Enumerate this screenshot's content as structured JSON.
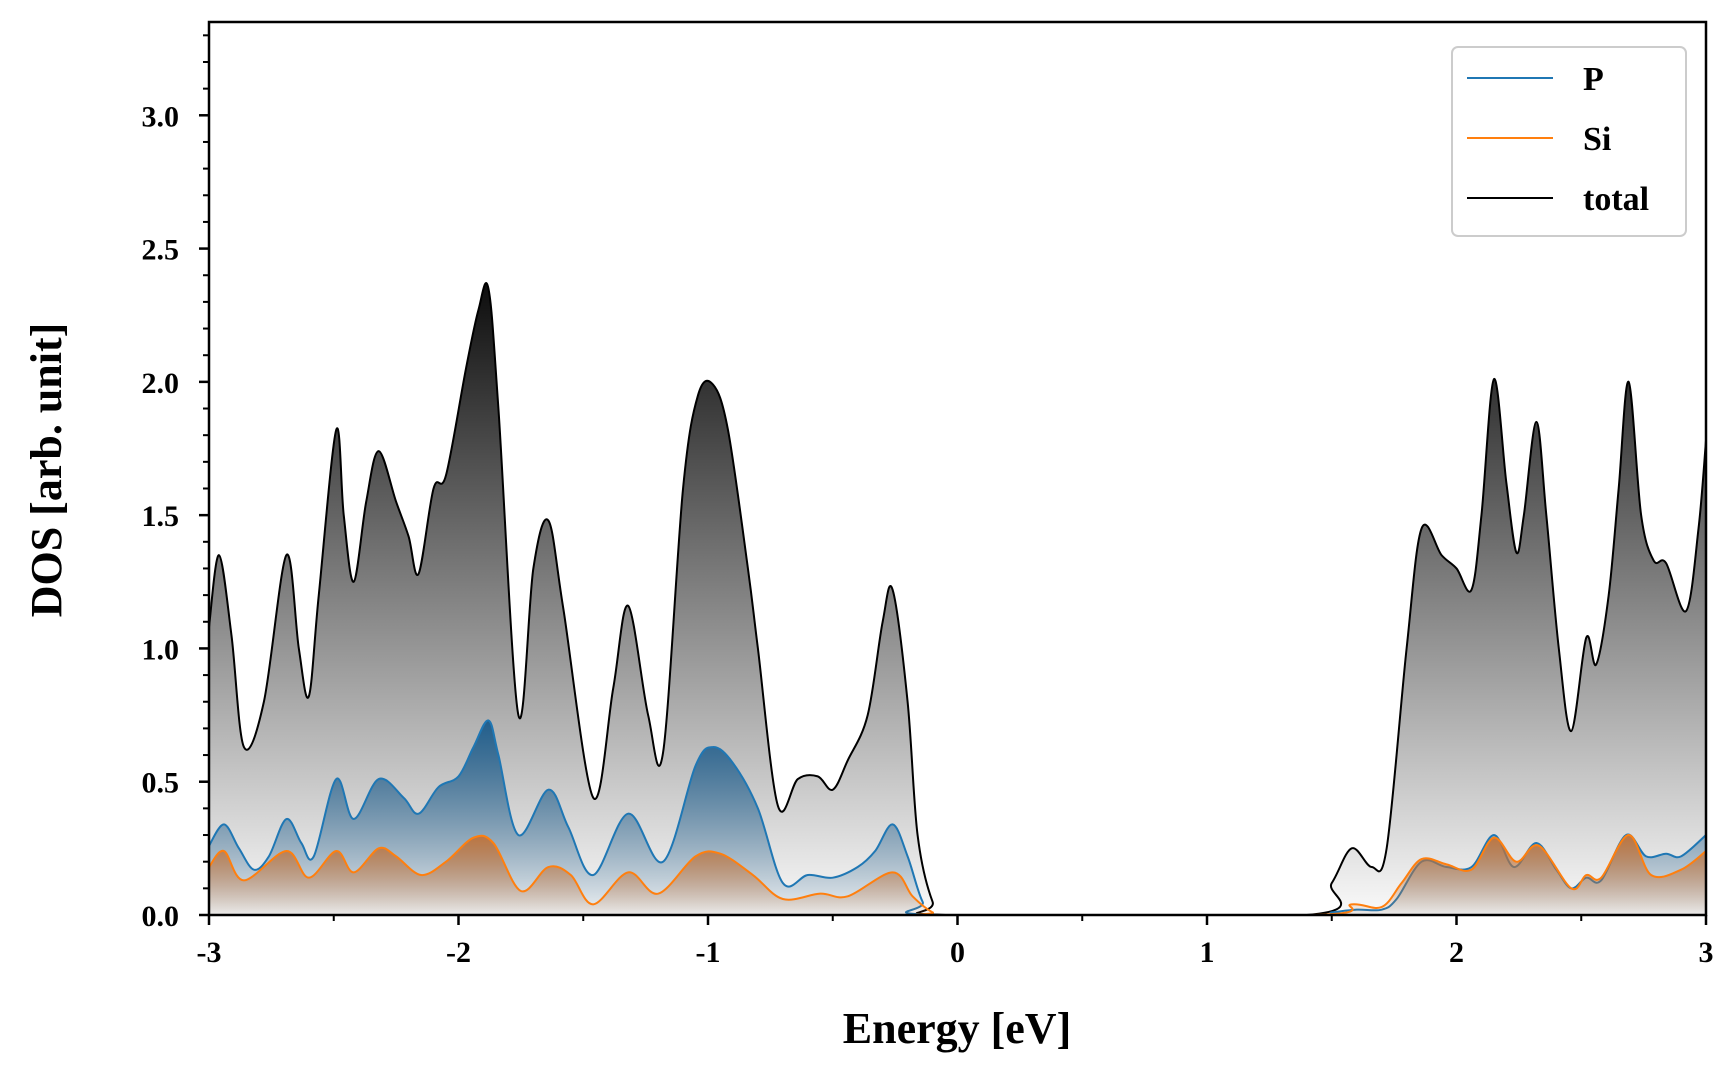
{
  "chart_data": {
    "type": "area",
    "title": "",
    "xlabel": "Energy [eV]",
    "ylabel": "DOS [arb. unit]",
    "xlim": [
      -3,
      3
    ],
    "ylim": [
      0,
      3.35
    ],
    "xticks": [
      -3,
      -2,
      -1,
      0,
      1,
      2,
      3
    ],
    "xtick_labels": [
      "-3",
      "-2",
      "-1",
      "0",
      "1",
      "2",
      "3"
    ],
    "yticks": [
      0.0,
      0.5,
      1.0,
      1.5,
      2.0,
      2.5,
      3.0
    ],
    "ytick_labels": [
      "0.0",
      "0.5",
      "1.0",
      "1.5",
      "2.0",
      "2.5",
      "3.0"
    ],
    "legend_position": "top-right",
    "series": [
      {
        "name": "P",
        "color": "#1f77b4",
        "fill_color": "#1a5a8a",
        "points": [
          [
            -3.0,
            0.26
          ],
          [
            -2.94,
            0.34
          ],
          [
            -2.88,
            0.25
          ],
          [
            -2.82,
            0.17
          ],
          [
            -2.76,
            0.22
          ],
          [
            -2.69,
            0.36
          ],
          [
            -2.63,
            0.27
          ],
          [
            -2.58,
            0.22
          ],
          [
            -2.49,
            0.51
          ],
          [
            -2.42,
            0.36
          ],
          [
            -2.32,
            0.51
          ],
          [
            -2.22,
            0.44
          ],
          [
            -2.16,
            0.38
          ],
          [
            -2.08,
            0.48
          ],
          [
            -2.0,
            0.52
          ],
          [
            -1.94,
            0.63
          ],
          [
            -1.88,
            0.73
          ],
          [
            -1.84,
            0.6
          ],
          [
            -1.76,
            0.3
          ],
          [
            -1.64,
            0.47
          ],
          [
            -1.56,
            0.33
          ],
          [
            -1.46,
            0.15
          ],
          [
            -1.32,
            0.38
          ],
          [
            -1.18,
            0.2
          ],
          [
            -1.05,
            0.56
          ],
          [
            -0.98,
            0.63
          ],
          [
            -0.9,
            0.57
          ],
          [
            -0.8,
            0.4
          ],
          [
            -0.7,
            0.12
          ],
          [
            -0.6,
            0.15
          ],
          [
            -0.5,
            0.14
          ],
          [
            -0.4,
            0.18
          ],
          [
            -0.33,
            0.24
          ],
          [
            -0.26,
            0.34
          ],
          [
            -0.2,
            0.22
          ],
          [
            -0.14,
            0.05
          ],
          [
            -0.08,
            0.0
          ],
          [
            1.4,
            0.0
          ],
          [
            1.5,
            0.01
          ],
          [
            1.6,
            0.02
          ],
          [
            1.7,
            0.02
          ],
          [
            1.76,
            0.06
          ],
          [
            1.86,
            0.2
          ],
          [
            1.96,
            0.18
          ],
          [
            2.06,
            0.18
          ],
          [
            2.15,
            0.3
          ],
          [
            2.23,
            0.18
          ],
          [
            2.32,
            0.27
          ],
          [
            2.4,
            0.17
          ],
          [
            2.46,
            0.1
          ],
          [
            2.52,
            0.14
          ],
          [
            2.58,
            0.13
          ],
          [
            2.68,
            0.3
          ],
          [
            2.76,
            0.22
          ],
          [
            2.84,
            0.23
          ],
          [
            2.9,
            0.22
          ],
          [
            3.0,
            0.3
          ]
        ]
      },
      {
        "name": "Si",
        "color": "#ff7f0e",
        "fill_color": "#c0733a",
        "points": [
          [
            -3.0,
            0.18
          ],
          [
            -2.94,
            0.24
          ],
          [
            -2.86,
            0.13
          ],
          [
            -2.69,
            0.24
          ],
          [
            -2.6,
            0.14
          ],
          [
            -2.49,
            0.24
          ],
          [
            -2.42,
            0.16
          ],
          [
            -2.32,
            0.25
          ],
          [
            -2.25,
            0.22
          ],
          [
            -2.15,
            0.15
          ],
          [
            -2.05,
            0.2
          ],
          [
            -1.94,
            0.29
          ],
          [
            -1.86,
            0.27
          ],
          [
            -1.75,
            0.09
          ],
          [
            -1.64,
            0.18
          ],
          [
            -1.55,
            0.15
          ],
          [
            -1.46,
            0.04
          ],
          [
            -1.32,
            0.16
          ],
          [
            -1.2,
            0.08
          ],
          [
            -1.05,
            0.22
          ],
          [
            -0.95,
            0.23
          ],
          [
            -0.82,
            0.15
          ],
          [
            -0.7,
            0.06
          ],
          [
            -0.55,
            0.08
          ],
          [
            -0.44,
            0.07
          ],
          [
            -0.26,
            0.16
          ],
          [
            -0.18,
            0.07
          ],
          [
            -0.1,
            0.01
          ],
          [
            -0.04,
            0.0
          ],
          [
            1.42,
            0.0
          ],
          [
            1.58,
            0.04
          ],
          [
            1.7,
            0.03
          ],
          [
            1.78,
            0.12
          ],
          [
            1.86,
            0.21
          ],
          [
            1.96,
            0.19
          ],
          [
            2.06,
            0.17
          ],
          [
            2.15,
            0.29
          ],
          [
            2.24,
            0.2
          ],
          [
            2.33,
            0.26
          ],
          [
            2.46,
            0.1
          ],
          [
            2.52,
            0.15
          ],
          [
            2.58,
            0.14
          ],
          [
            2.69,
            0.3
          ],
          [
            2.78,
            0.15
          ],
          [
            2.9,
            0.17
          ],
          [
            3.0,
            0.24
          ]
        ]
      },
      {
        "name": "total",
        "color": "#000000",
        "fill_color": "#111111",
        "points": [
          [
            -3.0,
            1.08
          ],
          [
            -2.96,
            1.35
          ],
          [
            -2.91,
            1.05
          ],
          [
            -2.86,
            0.63
          ],
          [
            -2.78,
            0.8
          ],
          [
            -2.69,
            1.35
          ],
          [
            -2.64,
            1.0
          ],
          [
            -2.6,
            0.82
          ],
          [
            -2.56,
            1.2
          ],
          [
            -2.49,
            1.82
          ],
          [
            -2.46,
            1.5
          ],
          [
            -2.42,
            1.25
          ],
          [
            -2.37,
            1.55
          ],
          [
            -2.32,
            1.74
          ],
          [
            -2.25,
            1.55
          ],
          [
            -2.2,
            1.42
          ],
          [
            -2.16,
            1.28
          ],
          [
            -2.1,
            1.6
          ],
          [
            -2.05,
            1.65
          ],
          [
            -1.97,
            2.05
          ],
          [
            -1.92,
            2.27
          ],
          [
            -1.88,
            2.35
          ],
          [
            -1.84,
            1.9
          ],
          [
            -1.76,
            0.75
          ],
          [
            -1.7,
            1.3
          ],
          [
            -1.64,
            1.48
          ],
          [
            -1.58,
            1.15
          ],
          [
            -1.46,
            0.44
          ],
          [
            -1.38,
            0.85
          ],
          [
            -1.32,
            1.16
          ],
          [
            -1.24,
            0.75
          ],
          [
            -1.18,
            0.61
          ],
          [
            -1.1,
            1.6
          ],
          [
            -1.04,
            1.95
          ],
          [
            -0.98,
            1.99
          ],
          [
            -0.92,
            1.82
          ],
          [
            -0.84,
            1.3
          ],
          [
            -0.8,
            1.0
          ],
          [
            -0.72,
            0.41
          ],
          [
            -0.64,
            0.51
          ],
          [
            -0.56,
            0.52
          ],
          [
            -0.5,
            0.47
          ],
          [
            -0.44,
            0.58
          ],
          [
            -0.36,
            0.75
          ],
          [
            -0.3,
            1.1
          ],
          [
            -0.26,
            1.22
          ],
          [
            -0.2,
            0.8
          ],
          [
            -0.16,
            0.3
          ],
          [
            -0.1,
            0.05
          ],
          [
            -0.04,
            0.0
          ],
          [
            1.4,
            0.0
          ],
          [
            1.5,
            0.12
          ],
          [
            1.58,
            0.25
          ],
          [
            1.66,
            0.18
          ],
          [
            1.72,
            0.25
          ],
          [
            1.8,
            1.0
          ],
          [
            1.86,
            1.45
          ],
          [
            1.94,
            1.35
          ],
          [
            2.0,
            1.3
          ],
          [
            2.06,
            1.22
          ],
          [
            2.1,
            1.5
          ],
          [
            2.15,
            2.01
          ],
          [
            2.2,
            1.62
          ],
          [
            2.24,
            1.36
          ],
          [
            2.27,
            1.5
          ],
          [
            2.32,
            1.85
          ],
          [
            2.36,
            1.5
          ],
          [
            2.41,
            1.0
          ],
          [
            2.46,
            0.69
          ],
          [
            2.52,
            1.04
          ],
          [
            2.56,
            0.94
          ],
          [
            2.61,
            1.2
          ],
          [
            2.65,
            1.6
          ],
          [
            2.69,
            2.0
          ],
          [
            2.74,
            1.5
          ],
          [
            2.79,
            1.33
          ],
          [
            2.84,
            1.32
          ],
          [
            2.92,
            1.14
          ],
          [
            2.97,
            1.45
          ],
          [
            3.0,
            1.78
          ]
        ]
      }
    ]
  }
}
